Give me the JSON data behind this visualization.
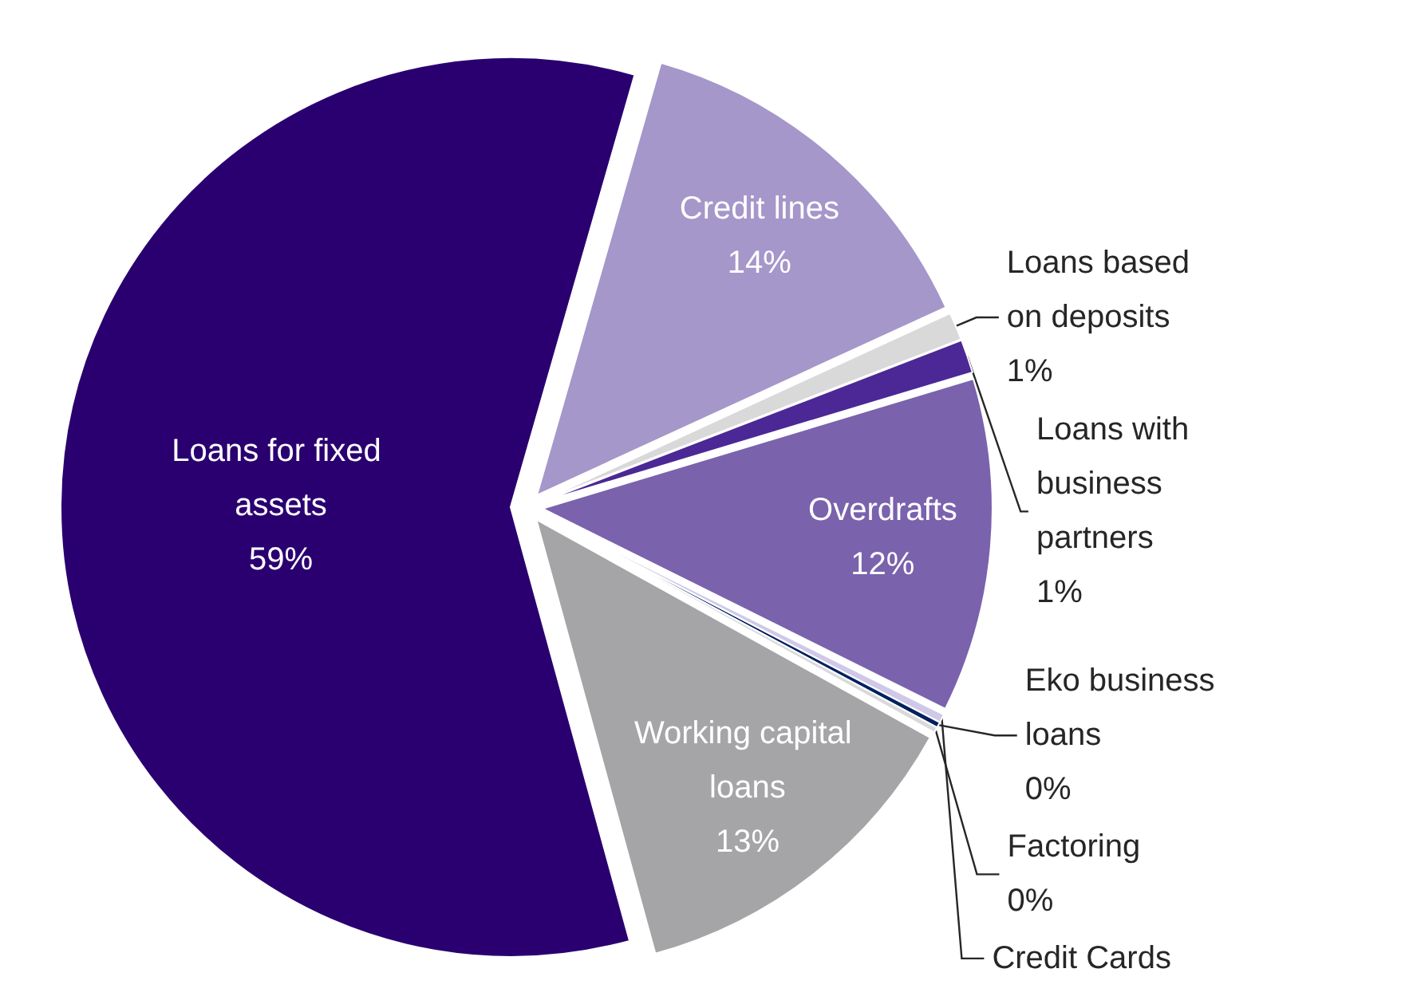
{
  "chart_data": {
    "type": "pie",
    "categories": [
      "Credit lines",
      "Loans based on deposits",
      "Loans with business partners",
      "Overdrafts",
      "Credit Cards",
      "Eko business loans",
      "Factoring",
      "Working capital loans",
      "Loans for fixed assets"
    ],
    "values": [
      13.7,
      1.0,
      1.2,
      12.0,
      0.3,
      0.2,
      0.2,
      12.7,
      58.7
    ],
    "value_labels": [
      "14%",
      "1%",
      "1%",
      "12%",
      null,
      "0%",
      "0%",
      "13%",
      "59%"
    ],
    "colors": [
      "#a597c9",
      "#d9d9d9",
      "#4b2896",
      "#7a62ad",
      "#d0c8e8",
      "#002060",
      "#d9d9d9",
      "#a5a5a7",
      "#2a0070"
    ]
  }
}
